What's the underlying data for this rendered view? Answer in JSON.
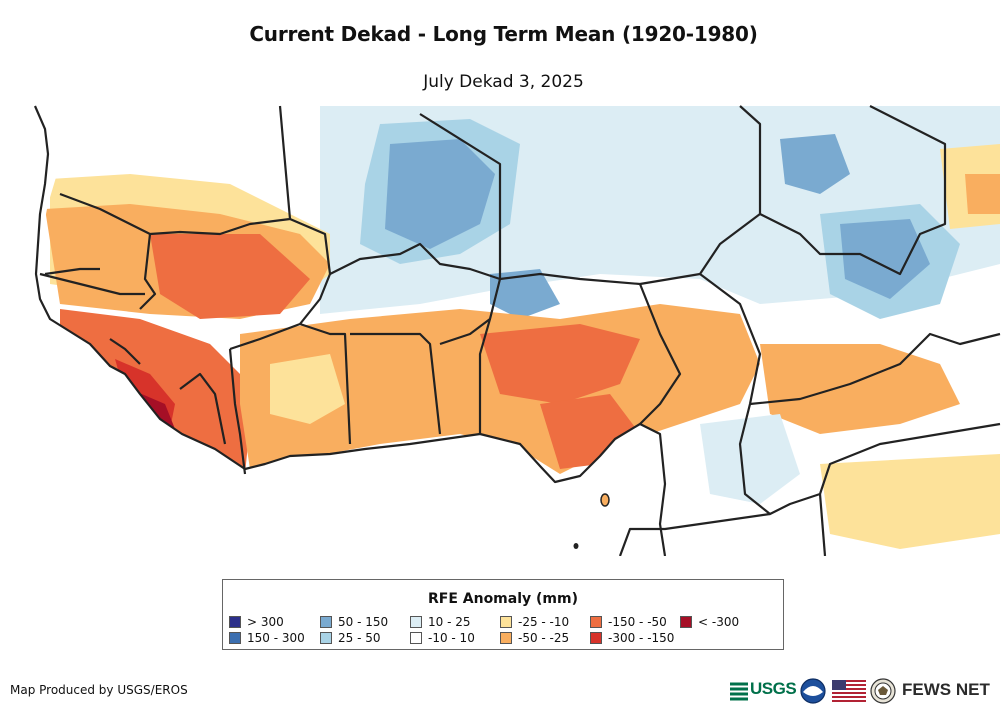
{
  "title": "Current Dekad - Long Term Mean (1920-1980)",
  "subtitle": "July Dekad 3, 2025",
  "legend": {
    "title": "RFE Anomaly (mm)",
    "items": [
      {
        "label": "> 300",
        "color": "#2c2f8a"
      },
      {
        "label": "150 - 300",
        "color": "#3c6fb0"
      },
      {
        "label": "50 - 150",
        "color": "#7aaad0"
      },
      {
        "label": "25 - 50",
        "color": "#a9d3e6"
      },
      {
        "label": "10 - 25",
        "color": "#dcedf4"
      },
      {
        "label": "-10 - 10",
        "color": "#ffffff"
      },
      {
        "label": "-25 - -10",
        "color": "#fde29a"
      },
      {
        "label": "-50 - -25",
        "color": "#f9ae5f"
      },
      {
        "label": "-150 - -50",
        "color": "#ee6e41"
      },
      {
        "label": "-300 - -150",
        "color": "#d7332a"
      },
      {
        "label": "< -300",
        "color": "#a50f26"
      }
    ]
  },
  "credit": "Map Produced by USGS/EROS",
  "logos": {
    "usgs": "USGS",
    "fews": "FEWS NET"
  },
  "colors": {
    "border": "#222222",
    "ocean": "#ffffff"
  }
}
